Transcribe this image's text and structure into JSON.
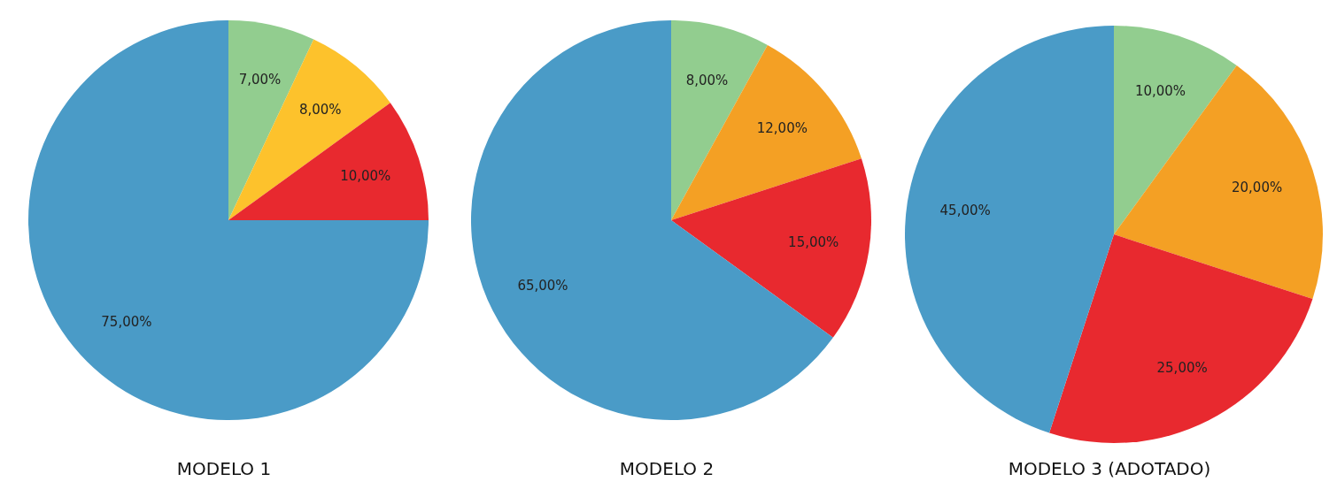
{
  "chart_data": [
    {
      "type": "pie",
      "title": "MODELO 1",
      "categories": [
        null,
        null,
        null,
        null
      ],
      "values": [
        7,
        8,
        10,
        75
      ],
      "colors": [
        "#92cd8f",
        "#fdc22c",
        "#e8292f",
        "#4a9bc7"
      ],
      "value_labels": [
        "7,00%",
        "8,00%",
        "10,00%",
        "75,00%"
      ]
    },
    {
      "type": "pie",
      "title": "MODELO 2",
      "categories": [
        null,
        null,
        null,
        null
      ],
      "values": [
        8,
        12,
        15,
        65
      ],
      "colors": [
        "#92cd8f",
        "#f4a024",
        "#e8292f",
        "#4a9bc7"
      ],
      "value_labels": [
        "8,00%",
        "12,00%",
        "15,00%",
        "65,00%"
      ]
    },
    {
      "type": "pie",
      "title": "MODELO 3 (ADOTADO)",
      "categories": [
        null,
        null,
        null,
        null
      ],
      "values": [
        10,
        20,
        25,
        45
      ],
      "colors": [
        "#92cd8f",
        "#f4a024",
        "#e8292f",
        "#4a9bc7"
      ],
      "value_labels": [
        "10,00%",
        "20,00%",
        "25,00%",
        "45,00%"
      ]
    }
  ]
}
